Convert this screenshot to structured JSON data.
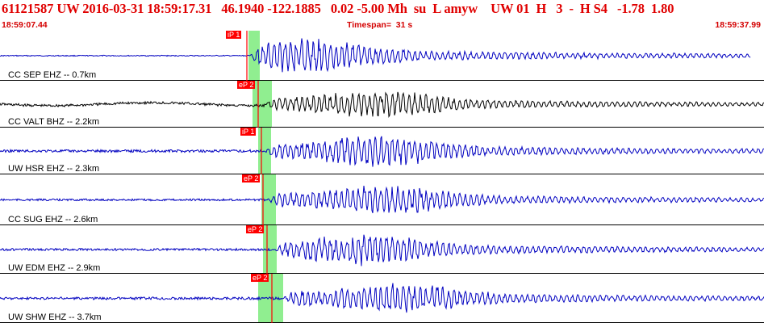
{
  "header": {
    "title": "61121587 UW 2016-03-31 18:59:17.31   46.1940 -122.1885   0.02 -5.00 Mh  su  L amyw    UW 01  H   3  -  H S4   -1.78  1.80",
    "start_time": "18:59:07.44",
    "timespan": "Timespan=  31 s",
    "end_time": "18:59:37.99"
  },
  "colors": {
    "header_text": "#e00000",
    "trace_blue": "#0000c0",
    "trace_black": "#000000",
    "pick_marker": "#ff0000",
    "window_band": "#90ee90"
  },
  "traces": [
    {
      "label": "CC SEP EHZ -- 0.7km",
      "pick_label": "iP 1",
      "color": "blue"
    },
    {
      "label": "CC VALT BHZ -- 2.2km",
      "pick_label": "eP 2",
      "color": "black"
    },
    {
      "label": "UW HSR EHZ -- 2.3km",
      "pick_label": "iP 1",
      "color": "blue"
    },
    {
      "label": "CC SUG EHZ -- 2.6km",
      "pick_label": "eP 2",
      "color": "blue"
    },
    {
      "label": "UW EDM EHZ -- 2.9km",
      "pick_label": "eP 2",
      "color": "blue"
    },
    {
      "label": "UW SHW EHZ -- 3.7km",
      "pick_label": "eP 2",
      "color": "blue"
    }
  ]
}
